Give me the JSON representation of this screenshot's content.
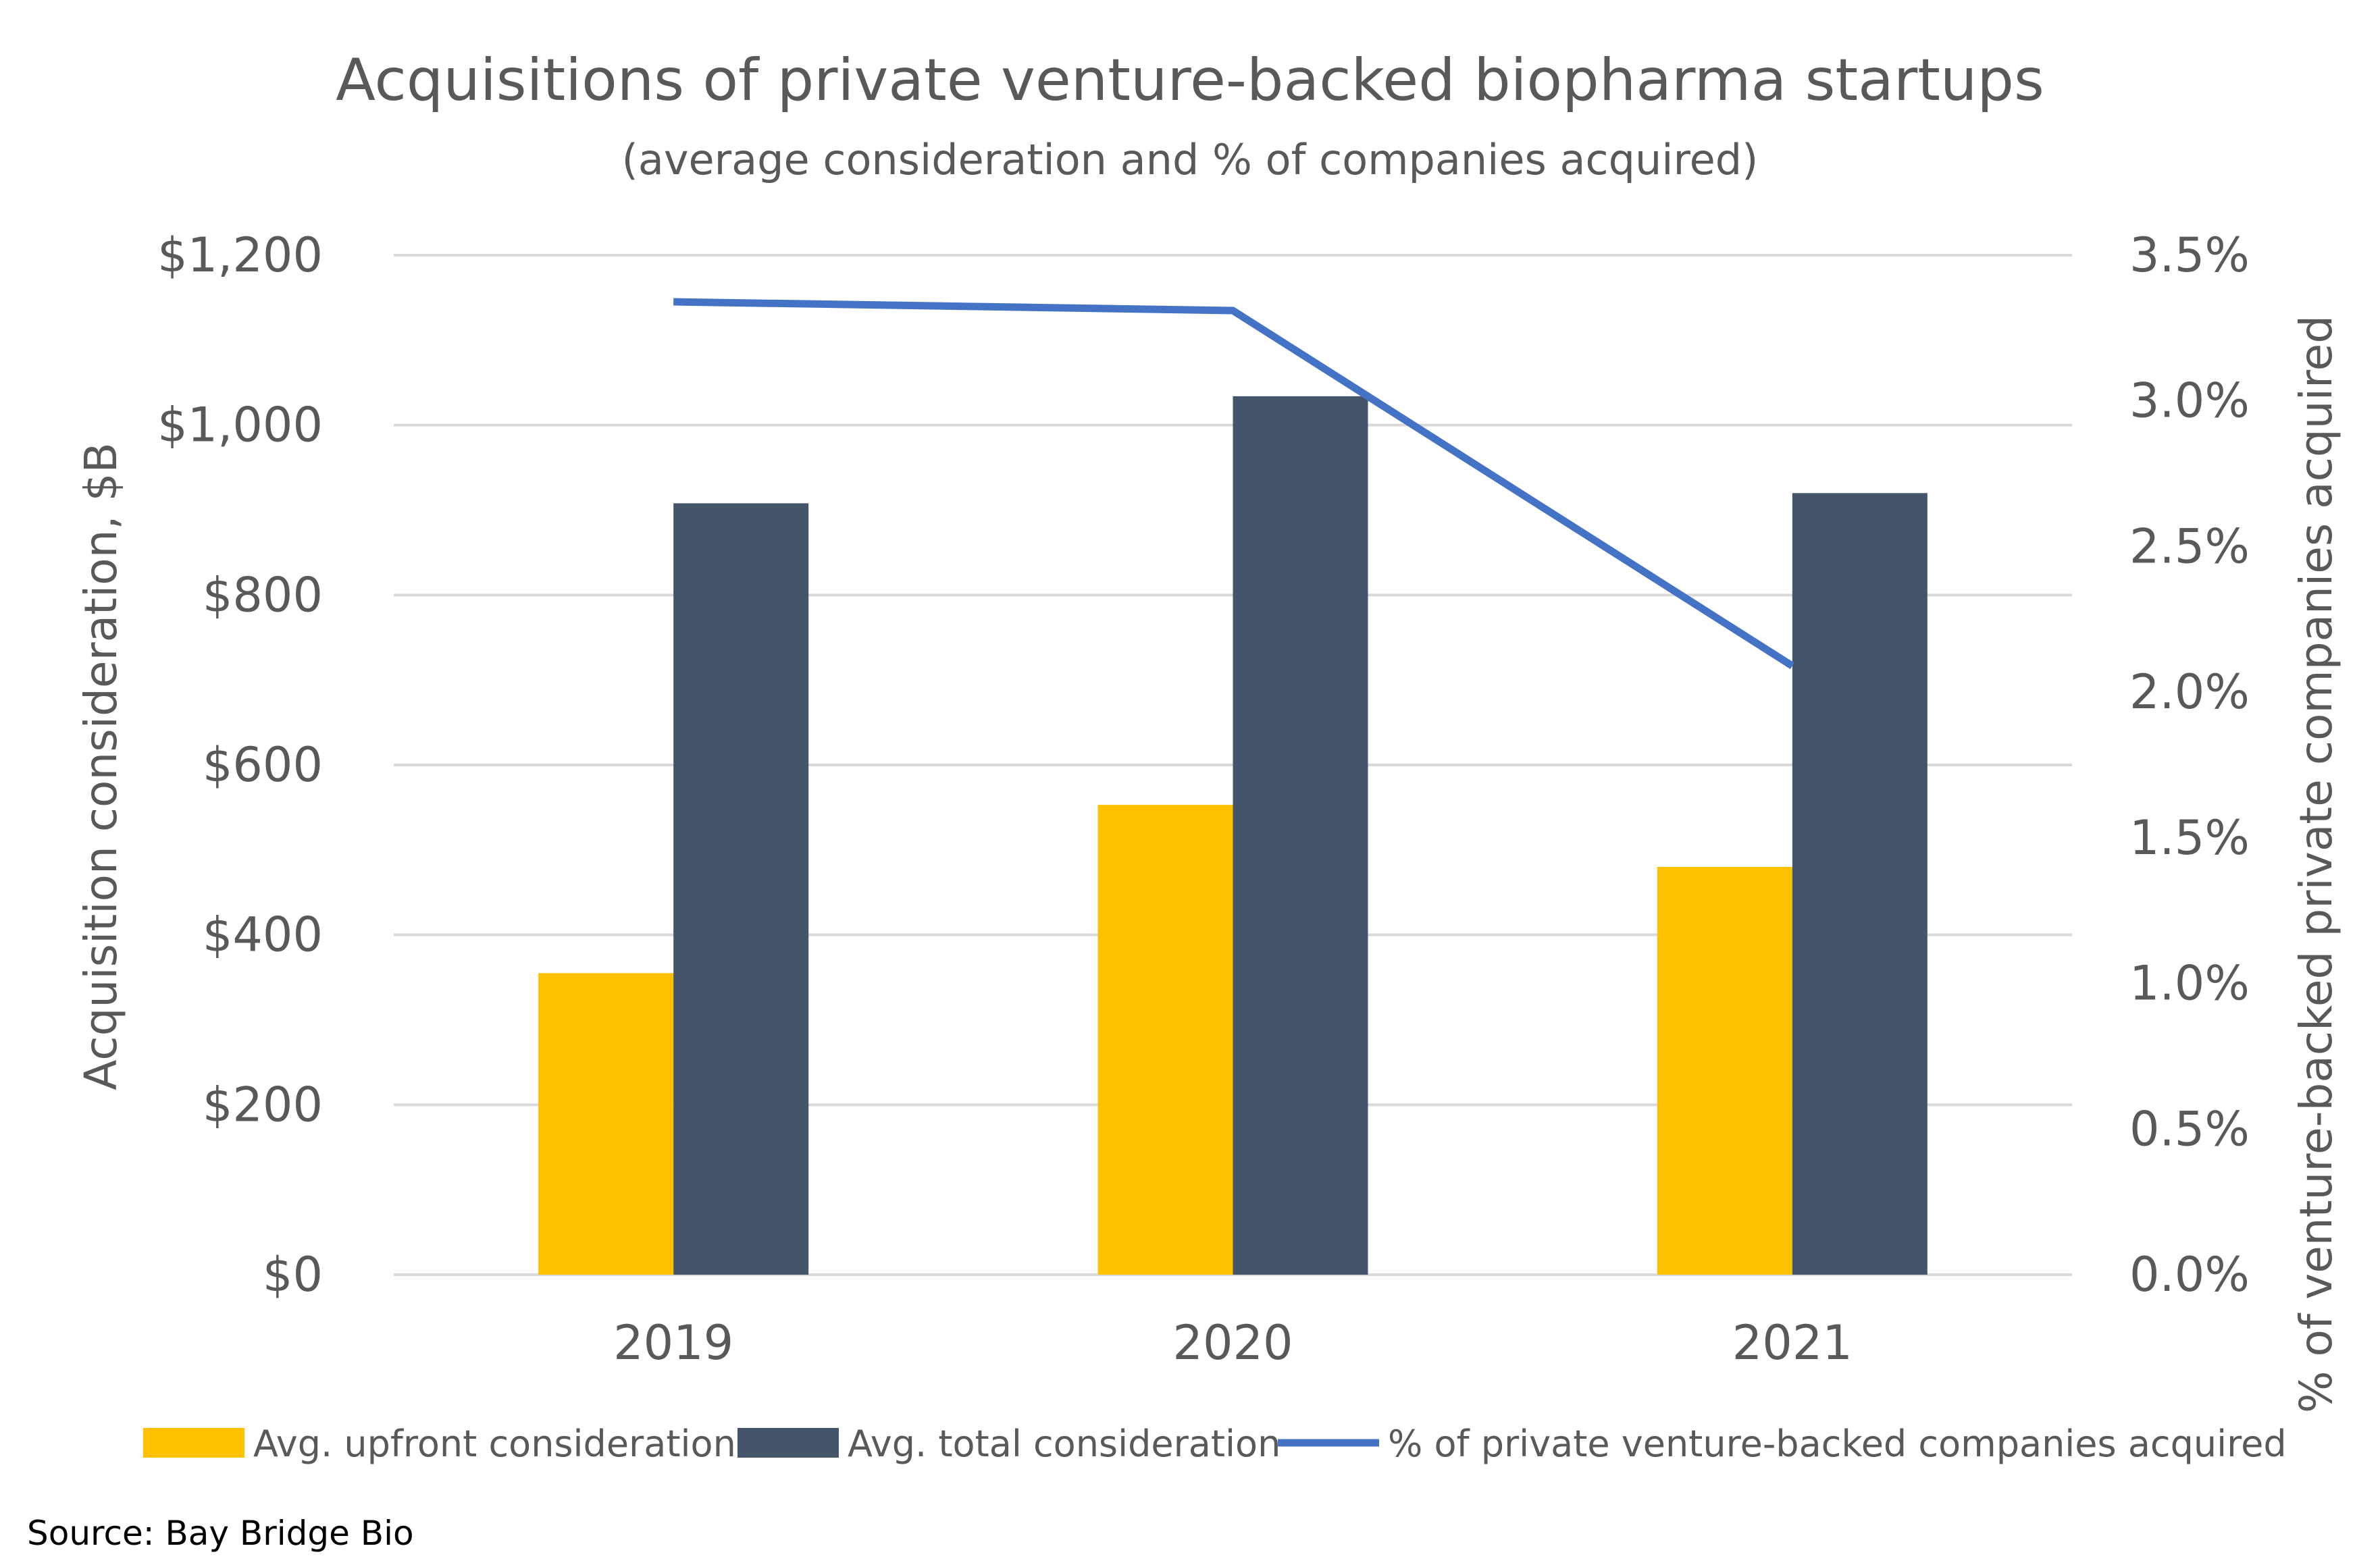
{
  "chart_data": {
    "type": "bar",
    "title": "Acquisitions of private venture-backed biopharma startups",
    "subtitle": "(average consideration and % of companies acquired)",
    "categories": [
      "2019",
      "2020",
      "2021"
    ],
    "series": [
      {
        "name": "Avg. upfront consideration",
        "type": "bar",
        "axis": "left",
        "color": "#FFC000",
        "values": [
          355,
          553,
          480
        ]
      },
      {
        "name": "Avg. total consideration",
        "type": "bar",
        "axis": "left",
        "color": "#44546A",
        "values": [
          908,
          1034,
          920
        ]
      },
      {
        "name": "% of private venture-backed companies acquired",
        "type": "line",
        "axis": "right",
        "color": "#4472C4",
        "values": [
          3.34,
          3.31,
          2.09
        ]
      }
    ],
    "ylabel": "Acquisition consideration, $B",
    "y2label": "% of venture-backed private companies acquired",
    "ylim": [
      0,
      1200
    ],
    "y2lim": [
      0,
      3.5
    ],
    "yticks": [
      "$0",
      "$200",
      "$400",
      "$600",
      "$800",
      "$1,000",
      "$1,200"
    ],
    "y2ticks": [
      "0.0%",
      "0.5%",
      "1.0%",
      "1.5%",
      "2.0%",
      "2.5%",
      "3.0%",
      "3.5%"
    ],
    "grid": true,
    "legend": "bottom",
    "gridColor": "#D9D9D9"
  },
  "source": "Source: Bay Bridge Bio"
}
